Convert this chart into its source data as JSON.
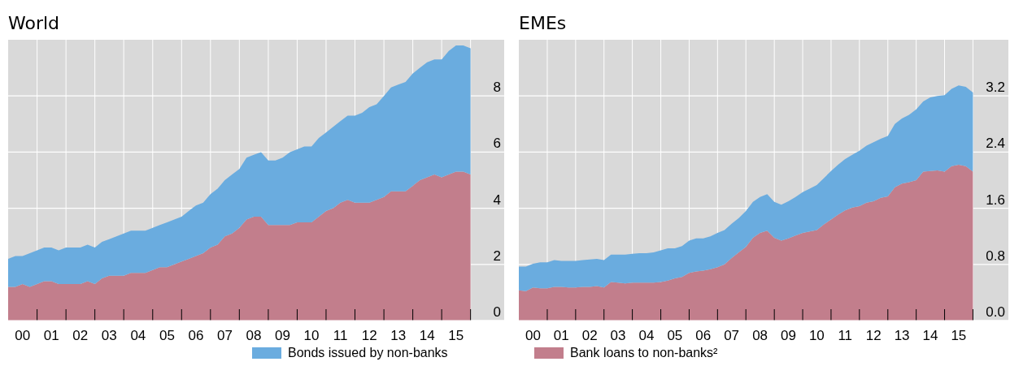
{
  "chart_data": [
    {
      "type": "area",
      "title": "World",
      "stacked": true,
      "grid": true,
      "legend": "bottom",
      "x": [
        "2000-01",
        "2000-04",
        "2000-07",
        "2000-10",
        "2001-01",
        "2001-04",
        "2001-07",
        "2001-10",
        "2002-01",
        "2002-04",
        "2002-07",
        "2002-10",
        "2003-01",
        "2003-04",
        "2003-07",
        "2003-10",
        "2004-01",
        "2004-04",
        "2004-07",
        "2004-10",
        "2005-01",
        "2005-04",
        "2005-07",
        "2005-10",
        "2006-01",
        "2006-04",
        "2006-07",
        "2006-10",
        "2007-01",
        "2007-04",
        "2007-07",
        "2007-10",
        "2008-01",
        "2008-04",
        "2008-07",
        "2008-10",
        "2009-01",
        "2009-04",
        "2009-07",
        "2009-10",
        "2010-01",
        "2010-04",
        "2010-07",
        "2010-10",
        "2011-01",
        "2011-04",
        "2011-07",
        "2011-10",
        "2012-01",
        "2012-04",
        "2012-07",
        "2012-10",
        "2013-01",
        "2013-04",
        "2013-07",
        "2013-10",
        "2014-01",
        "2014-04",
        "2014-07",
        "2014-10",
        "2015-01",
        "2015-04",
        "2015-07",
        "2015-10",
        "2016-01"
      ],
      "xlim": [
        "2000-01",
        "2017-03"
      ],
      "xticks": [
        {
          "value": "2000-07",
          "label": "00"
        },
        {
          "value": "2001-07",
          "label": "01"
        },
        {
          "value": "2002-07",
          "label": "02"
        },
        {
          "value": "2003-07",
          "label": "03"
        },
        {
          "value": "2004-07",
          "label": "04"
        },
        {
          "value": "2005-07",
          "label": "05"
        },
        {
          "value": "2006-07",
          "label": "06"
        },
        {
          "value": "2007-07",
          "label": "07"
        },
        {
          "value": "2008-07",
          "label": "08"
        },
        {
          "value": "2009-07",
          "label": "09"
        },
        {
          "value": "2010-07",
          "label": "10"
        },
        {
          "value": "2011-07",
          "label": "11"
        },
        {
          "value": "2012-07",
          "label": "12"
        },
        {
          "value": "2013-07",
          "label": "13"
        },
        {
          "value": "2014-07",
          "label": "14"
        },
        {
          "value": "2015-07",
          "label": "15"
        },
        {
          "value": "2001",
          "label": null
        },
        {
          "value": "2002",
          "label": null
        },
        {
          "value": "2003",
          "label": null
        },
        {
          "value": "2004",
          "label": null
        },
        {
          "value": "2005",
          "label": null
        },
        {
          "value": "2006",
          "label": null
        },
        {
          "value": "2007",
          "label": null
        },
        {
          "value": "2008",
          "label": null
        },
        {
          "value": "2009",
          "label": null
        },
        {
          "value": "2010",
          "label": null
        },
        {
          "value": "2011",
          "label": null
        },
        {
          "value": "2012",
          "label": null
        },
        {
          "value": "2013",
          "label": null
        },
        {
          "value": "2014",
          "label": null
        },
        {
          "value": "2015",
          "label": null
        },
        {
          "value": "2016",
          "label": null
        }
      ],
      "ylim": [
        0,
        10
      ],
      "yticks": [
        0,
        2,
        4,
        6,
        8
      ],
      "series": [
        {
          "name": "Bank loans to non-banks²",
          "color": "#c27e8c",
          "values": [
            1.2,
            1.2,
            1.3,
            1.2,
            1.3,
            1.4,
            1.4,
            1.3,
            1.3,
            1.3,
            1.3,
            1.4,
            1.3,
            1.5,
            1.6,
            1.6,
            1.6,
            1.7,
            1.7,
            1.7,
            1.8,
            1.9,
            1.9,
            2.0,
            2.1,
            2.2,
            2.3,
            2.4,
            2.6,
            2.7,
            3.0,
            3.1,
            3.3,
            3.6,
            3.7,
            3.7,
            3.4,
            3.4,
            3.4,
            3.4,
            3.5,
            3.5,
            3.5,
            3.7,
            3.9,
            4.0,
            4.2,
            4.3,
            4.2,
            4.2,
            4.2,
            4.3,
            4.4,
            4.6,
            4.6,
            4.6,
            4.8,
            5.0,
            5.1,
            5.2,
            5.1,
            5.2,
            5.3,
            5.3,
            5.2
          ]
        },
        {
          "name": "Bonds issued by non-banks",
          "color": "#6aacdf",
          "values": [
            1.0,
            1.1,
            1.0,
            1.2,
            1.2,
            1.2,
            1.2,
            1.2,
            1.3,
            1.3,
            1.3,
            1.3,
            1.3,
            1.3,
            1.3,
            1.4,
            1.5,
            1.5,
            1.5,
            1.5,
            1.5,
            1.5,
            1.6,
            1.6,
            1.6,
            1.7,
            1.8,
            1.8,
            1.9,
            2.0,
            2.0,
            2.1,
            2.1,
            2.2,
            2.2,
            2.3,
            2.3,
            2.3,
            2.4,
            2.6,
            2.6,
            2.7,
            2.7,
            2.8,
            2.8,
            2.9,
            2.9,
            3.0,
            3.1,
            3.2,
            3.4,
            3.4,
            3.6,
            3.7,
            3.8,
            3.9,
            4.0,
            4.0,
            4.1,
            4.1,
            4.2,
            4.4,
            4.5,
            4.5,
            4.5
          ]
        }
      ]
    },
    {
      "type": "area",
      "title": "EMEs",
      "stacked": true,
      "grid": true,
      "x": [
        "2000-01",
        "2000-04",
        "2000-07",
        "2000-10",
        "2001-01",
        "2001-04",
        "2001-07",
        "2001-10",
        "2002-01",
        "2002-04",
        "2002-07",
        "2002-10",
        "2003-01",
        "2003-04",
        "2003-07",
        "2003-10",
        "2004-01",
        "2004-04",
        "2004-07",
        "2004-10",
        "2005-01",
        "2005-04",
        "2005-07",
        "2005-10",
        "2006-01",
        "2006-04",
        "2006-07",
        "2006-10",
        "2007-01",
        "2007-04",
        "2007-07",
        "2007-10",
        "2008-01",
        "2008-04",
        "2008-07",
        "2008-10",
        "2009-01",
        "2009-04",
        "2009-07",
        "2009-10",
        "2010-01",
        "2010-04",
        "2010-07",
        "2010-10",
        "2011-01",
        "2011-04",
        "2011-07",
        "2011-10",
        "2012-01",
        "2012-04",
        "2012-07",
        "2012-10",
        "2013-01",
        "2013-04",
        "2013-07",
        "2013-10",
        "2014-01",
        "2014-04",
        "2014-07",
        "2014-10",
        "2015-01",
        "2015-04",
        "2015-07",
        "2015-10",
        "2016-01"
      ],
      "xlim": [
        "2000-01",
        "2017-04"
      ],
      "xticks": [
        {
          "value": "2000-07",
          "label": "00"
        },
        {
          "value": "2001-07",
          "label": "01"
        },
        {
          "value": "2002-07",
          "label": "02"
        },
        {
          "value": "2003-07",
          "label": "03"
        },
        {
          "value": "2004-07",
          "label": "04"
        },
        {
          "value": "2005-07",
          "label": "05"
        },
        {
          "value": "2006-07",
          "label": "06"
        },
        {
          "value": "2007-07",
          "label": "07"
        },
        {
          "value": "2008-07",
          "label": "08"
        },
        {
          "value": "2009-07",
          "label": "09"
        },
        {
          "value": "2010-07",
          "label": "10"
        },
        {
          "value": "2011-07",
          "label": "11"
        },
        {
          "value": "2012-07",
          "label": "12"
        },
        {
          "value": "2013-07",
          "label": "13"
        },
        {
          "value": "2014-07",
          "label": "14"
        },
        {
          "value": "2015-07",
          "label": "15"
        },
        {
          "value": "2001",
          "label": null
        },
        {
          "value": "2002",
          "label": null
        },
        {
          "value": "2003",
          "label": null
        },
        {
          "value": "2004",
          "label": null
        },
        {
          "value": "2005",
          "label": null
        },
        {
          "value": "2006",
          "label": null
        },
        {
          "value": "2007",
          "label": null
        },
        {
          "value": "2008",
          "label": null
        },
        {
          "value": "2009",
          "label": null
        },
        {
          "value": "2010",
          "label": null
        },
        {
          "value": "2011",
          "label": null
        },
        {
          "value": "2012",
          "label": null
        },
        {
          "value": "2013",
          "label": null
        },
        {
          "value": "2014",
          "label": null
        },
        {
          "value": "2015",
          "label": null
        },
        {
          "value": "2016",
          "label": null
        }
      ],
      "ylim": [
        0,
        4
      ],
      "yticks": [
        {
          "value": 0,
          "label": "0.0"
        },
        {
          "value": 0.8,
          "label": "0.8"
        },
        {
          "value": 1.6,
          "label": "1.6"
        },
        {
          "value": 2.4,
          "label": "2.4"
        },
        {
          "value": 3.2,
          "label": "3.2"
        }
      ],
      "series": [
        {
          "color": "#c27e8c",
          "values": [
            0.43,
            0.42,
            0.47,
            0.46,
            0.46,
            0.48,
            0.48,
            0.47,
            0.47,
            0.48,
            0.48,
            0.49,
            0.47,
            0.55,
            0.54,
            0.53,
            0.54,
            0.54,
            0.54,
            0.54,
            0.55,
            0.57,
            0.6,
            0.62,
            0.68,
            0.7,
            0.71,
            0.73,
            0.76,
            0.8,
            0.89,
            0.97,
            1.05,
            1.18,
            1.25,
            1.28,
            1.18,
            1.14,
            1.17,
            1.21,
            1.25,
            1.27,
            1.29,
            1.37,
            1.44,
            1.51,
            1.57,
            1.61,
            1.63,
            1.68,
            1.7,
            1.75,
            1.77,
            1.9,
            1.95,
            1.97,
            2.0,
            2.12,
            2.13,
            2.14,
            2.12,
            2.2,
            2.22,
            2.2,
            2.12
          ]
        },
        {
          "color": "#6aacdf",
          "values": [
            0.34,
            0.35,
            0.34,
            0.37,
            0.37,
            0.38,
            0.37,
            0.38,
            0.38,
            0.38,
            0.39,
            0.39,
            0.39,
            0.39,
            0.4,
            0.41,
            0.41,
            0.42,
            0.42,
            0.43,
            0.45,
            0.46,
            0.43,
            0.44,
            0.46,
            0.47,
            0.46,
            0.47,
            0.49,
            0.49,
            0.49,
            0.49,
            0.51,
            0.51,
            0.51,
            0.52,
            0.51,
            0.51,
            0.53,
            0.55,
            0.58,
            0.61,
            0.64,
            0.66,
            0.69,
            0.71,
            0.73,
            0.75,
            0.79,
            0.81,
            0.84,
            0.84,
            0.86,
            0.9,
            0.93,
            0.96,
            1.01,
            1.0,
            1.05,
            1.06,
            1.09,
            1.1,
            1.13,
            1.13,
            1.13
          ]
        }
      ]
    }
  ]
}
